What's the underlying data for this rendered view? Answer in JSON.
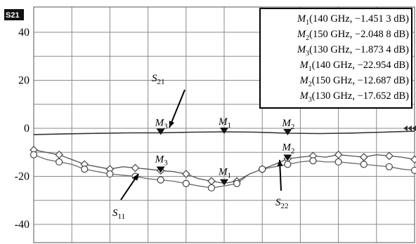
{
  "chart_data": {
    "type": "line",
    "trace_badge": "S21",
    "xlim": [
      110,
      170
    ],
    "ylim": [
      -45,
      48
    ],
    "yticks": [
      40,
      20,
      0,
      -20,
      -40
    ],
    "grid": true,
    "legend_placement": "top-right",
    "series": [
      {
        "name": "S21",
        "label_main": "S",
        "label_sub": "21",
        "x": [
          110,
          115,
          120,
          125,
          130,
          135,
          140,
          145,
          150,
          155,
          160,
          165,
          170
        ],
        "y": [
          -2.6,
          -2.3,
          -2.1,
          -1.9,
          -1.87,
          -1.6,
          -1.45,
          -1.6,
          -2.05,
          -2.2,
          -2.0,
          -1.6,
          -1.2
        ]
      },
      {
        "name": "S11",
        "label_main": "S",
        "label_sub": "11",
        "x": [
          110,
          112,
          114,
          116,
          118,
          120,
          122,
          124,
          126,
          128,
          130,
          132,
          134,
          136,
          138,
          140,
          142,
          144,
          146,
          148,
          150,
          152,
          154,
          156,
          158,
          160,
          162,
          164,
          166,
          168,
          170
        ],
        "y": [
          -9,
          -10,
          -11,
          -13,
          -15,
          -16,
          -17,
          -16,
          -16.5,
          -17,
          -17.6,
          -18,
          -19,
          -21,
          -22,
          -22.9,
          -22,
          -19,
          -17,
          -15,
          -12.7,
          -12,
          -11.5,
          -12,
          -11,
          -11.5,
          -12,
          -11,
          -11.5,
          -12,
          -13
        ]
      },
      {
        "name": "S22",
        "label_main": "S",
        "label_sub": "22",
        "x": [
          110,
          112,
          114,
          116,
          118,
          120,
          122,
          124,
          126,
          128,
          130,
          132,
          134,
          136,
          138,
          140,
          142,
          144,
          146,
          148,
          150,
          152,
          154,
          156,
          158,
          160,
          162,
          164,
          166,
          168,
          170
        ],
        "y": [
          -11,
          -13,
          -14,
          -15,
          -17,
          -18,
          -19,
          -19.5,
          -20,
          -21,
          -21.5,
          -22,
          -23,
          -24,
          -24.8,
          -24,
          -23,
          -19,
          -17,
          -16,
          -15,
          -14,
          -13.5,
          -14,
          -14,
          -14.5,
          -15,
          -15.5,
          -16,
          -17,
          -17.5
        ]
      }
    ],
    "markers": [
      {
        "label_main": "M",
        "label_sub": "3",
        "trace": "S21",
        "x": 130,
        "y": -1.8734
      },
      {
        "label_main": "M",
        "label_sub": "1",
        "trace": "S21",
        "x": 140,
        "y": -1.4513
      },
      {
        "label_main": "M",
        "label_sub": "2",
        "trace": "S21",
        "x": 150,
        "y": -2.0488
      },
      {
        "label_main": "M",
        "label_sub": "3",
        "trace": "S11",
        "x": 130,
        "y": -17.652
      },
      {
        "label_main": "M",
        "label_sub": "1",
        "trace": "S11",
        "x": 140,
        "y": -22.954
      },
      {
        "label_main": "M",
        "label_sub": "2",
        "trace": "S11",
        "x": 150,
        "y": -12.687
      }
    ],
    "legend": [
      {
        "name": "M",
        "sub": "1",
        "text": "(140 GHz, −1.451 3 dB)"
      },
      {
        "name": "M",
        "sub": "2",
        "text": "(150 GHz, −2.048 8 dB)"
      },
      {
        "name": "M",
        "sub": "3",
        "text": "(130 GHz, −1.873 4 dB)"
      },
      {
        "name": "M",
        "sub": "1",
        "text": "(140 GHz, −22.954 dB)"
      },
      {
        "name": "M",
        "sub": "2",
        "text": "(150 GHz, −12.687 dB)"
      },
      {
        "name": "M",
        "sub": "3",
        "text": "(130 GHz, −17.652 dB)"
      }
    ]
  }
}
